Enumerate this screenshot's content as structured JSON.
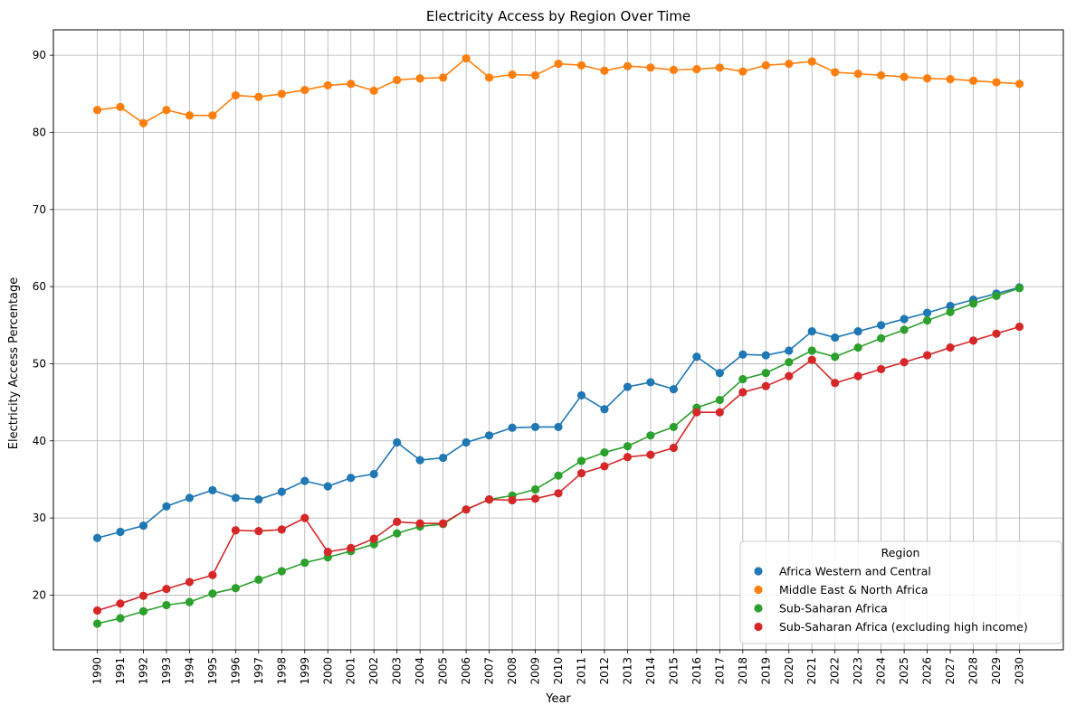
{
  "chart_data": {
    "type": "line",
    "title": "Electricity Access by Region Over Time",
    "xlabel": "Year",
    "ylabel": "Electricity Access Percentage",
    "ylim": [
      12.9,
      93.3
    ],
    "yticks": [
      20,
      30,
      40,
      50,
      60,
      70,
      80,
      90
    ],
    "grid": true,
    "markers": true,
    "legend": {
      "title": "Region",
      "position": "lower-right"
    },
    "x": [
      "1990",
      "1991",
      "1992",
      "1993",
      "1994",
      "1995",
      "1996",
      "1997",
      "1998",
      "1999",
      "2000",
      "2001",
      "2002",
      "2003",
      "2004",
      "2005",
      "2006",
      "2007",
      "2008",
      "2009",
      "2010",
      "2011",
      "2012",
      "2013",
      "2014",
      "2015",
      "2016",
      "2017",
      "2018",
      "2019",
      "2020",
      "2021",
      "2022",
      "2023",
      "2024",
      "2025",
      "2026",
      "2027",
      "2028",
      "2029",
      "2030"
    ],
    "series": [
      {
        "name": "Africa Western and Central",
        "color": "#1f77b4",
        "values": [
          27.4,
          28.2,
          29.0,
          31.5,
          32.6,
          33.6,
          32.6,
          32.4,
          33.4,
          34.8,
          34.1,
          35.2,
          35.7,
          39.8,
          37.5,
          37.8,
          39.8,
          40.7,
          41.7,
          41.8,
          41.8,
          45.9,
          44.1,
          47.0,
          47.6,
          46.7,
          50.9,
          48.8,
          51.2,
          51.1,
          51.7,
          54.2,
          53.4,
          54.2,
          55.0,
          55.8,
          56.6,
          57.5,
          58.3,
          59.1,
          59.9
        ]
      },
      {
        "name": "Middle East & North Africa",
        "color": "#ff7f0e",
        "values": [
          82.9,
          83.3,
          81.2,
          82.9,
          82.2,
          82.2,
          84.8,
          84.6,
          85.0,
          85.5,
          86.1,
          86.3,
          85.4,
          86.8,
          87.0,
          87.1,
          89.6,
          87.1,
          87.5,
          87.4,
          88.9,
          88.7,
          88.0,
          88.6,
          88.4,
          88.1,
          88.2,
          88.4,
          87.9,
          88.7,
          88.9,
          89.2,
          87.8,
          87.6,
          87.4,
          87.2,
          87.0,
          86.9,
          86.7,
          86.5,
          86.3
        ]
      },
      {
        "name": "Sub-Saharan Africa",
        "color": "#2ca02c",
        "values": [
          16.3,
          17.0,
          17.9,
          18.7,
          19.1,
          20.2,
          20.9,
          22.0,
          23.1,
          24.2,
          24.9,
          25.7,
          26.6,
          28.0,
          28.9,
          29.2,
          31.1,
          32.4,
          32.9,
          33.7,
          35.5,
          37.4,
          38.5,
          39.3,
          40.7,
          41.8,
          44.3,
          45.3,
          48.0,
          48.8,
          50.2,
          51.7,
          50.9,
          52.1,
          53.3,
          54.4,
          55.6,
          56.7,
          57.8,
          58.8,
          59.8
        ]
      },
      {
        "name": "Sub-Saharan Africa (excluding high income)",
        "color": "#d62728",
        "values": [
          18.0,
          18.9,
          19.9,
          20.8,
          21.7,
          22.6,
          28.4,
          28.3,
          28.5,
          30.0,
          25.6,
          26.1,
          27.3,
          29.5,
          29.3,
          29.3,
          31.1,
          32.4,
          32.3,
          32.5,
          33.2,
          35.8,
          36.7,
          37.9,
          38.2,
          39.1,
          43.7,
          43.7,
          46.3,
          47.1,
          48.4,
          50.5,
          47.5,
          48.4,
          49.3,
          50.2,
          51.1,
          52.1,
          53.0,
          53.9,
          54.8
        ]
      }
    ]
  }
}
